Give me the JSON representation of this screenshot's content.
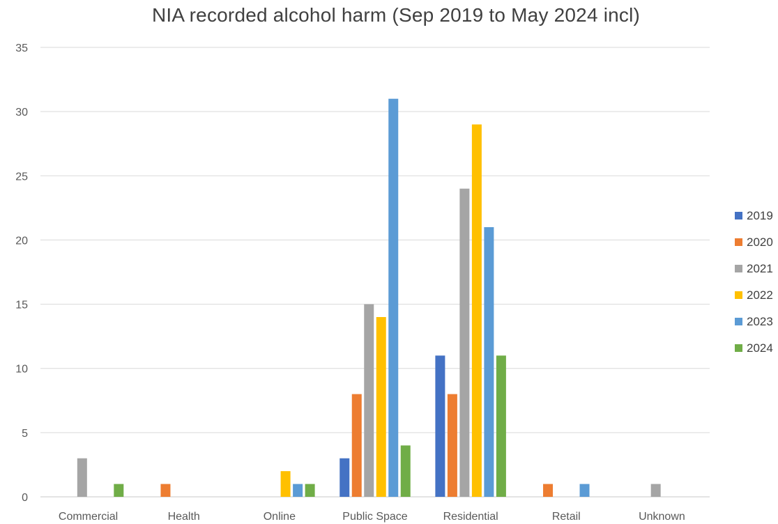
{
  "chart_data": {
    "type": "bar",
    "title": "NIA recorded alcohol harm (Sep 2019 to May 2024 incl)",
    "xlabel": "",
    "ylabel": "",
    "ylim": [
      0,
      35
    ],
    "yticks": [
      0,
      5,
      10,
      15,
      20,
      25,
      30,
      35
    ],
    "grid": true,
    "legend_position": "right",
    "categories": [
      "Commercial",
      "Health",
      "Online",
      "Public Space",
      "Residential",
      "Retail",
      "Unknown"
    ],
    "series": [
      {
        "name": "2019",
        "color": "#4472C4",
        "values": [
          0,
          0,
          0,
          3,
          11,
          0,
          0
        ]
      },
      {
        "name": "2020",
        "color": "#ED7D31",
        "values": [
          0,
          1,
          0,
          8,
          8,
          1,
          0
        ]
      },
      {
        "name": "2021",
        "color": "#A5A5A5",
        "values": [
          3,
          0,
          0,
          15,
          24,
          0,
          1
        ]
      },
      {
        "name": "2022",
        "color": "#FFC000",
        "values": [
          0,
          0,
          2,
          14,
          29,
          0,
          0
        ]
      },
      {
        "name": "2023",
        "color": "#5B9BD5",
        "values": [
          0,
          0,
          1,
          31,
          21,
          1,
          0
        ]
      },
      {
        "name": "2024",
        "color": "#70AD47",
        "values": [
          1,
          0,
          1,
          4,
          11,
          0,
          0
        ]
      }
    ]
  }
}
